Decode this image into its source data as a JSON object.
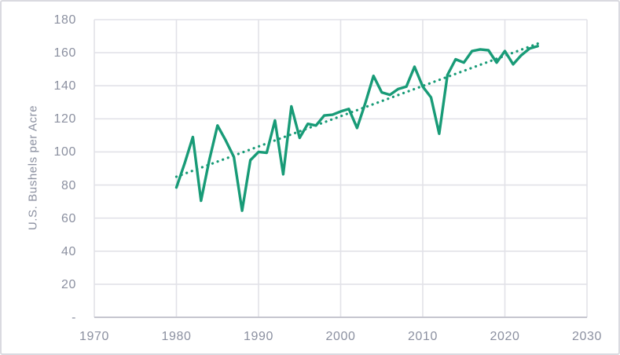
{
  "window": {
    "background": "#ffffff",
    "border_color": "#dadae0"
  },
  "chart_data": {
    "type": "line",
    "title": "",
    "xlabel": "",
    "ylabel": "U.S. Bushels per Acre",
    "xlim": [
      1970,
      2030
    ],
    "ylim": [
      0,
      180
    ],
    "grid": true,
    "legend": false,
    "colors": {
      "series_line": "#189b77",
      "trend_line": "#189b77",
      "gridline": "#e2e2e8",
      "axis_line": "#c6c6cf",
      "tick_text": "#8b90a0"
    },
    "x_ticks": {
      "values": [
        1970,
        1980,
        1990,
        2000,
        2010,
        2020,
        2030
      ],
      "labels": [
        "1970",
        "1980",
        "1990",
        "2000",
        "2010",
        "2020",
        "2030"
      ]
    },
    "y_ticks": {
      "values": [
        180,
        160,
        140,
        120,
        100,
        80,
        60,
        40,
        20,
        0
      ],
      "labels": [
        "180",
        "160",
        "140",
        "120",
        "100",
        "80",
        "60",
        "40",
        "20",
        "-"
      ]
    },
    "series": [
      {
        "style": "solid",
        "x": [
          1980,
          1981,
          1982,
          1983,
          1984,
          1985,
          1986,
          1987,
          1988,
          1989,
          1990,
          1991,
          1992,
          1993,
          1994,
          1995,
          1996,
          1997,
          1998,
          1999,
          2000,
          2001,
          2002,
          2003,
          2004,
          2005,
          2006,
          2007,
          2008,
          2009,
          2010,
          2011,
          2012,
          2013,
          2014,
          2015,
          2016,
          2017,
          2018,
          2019,
          2020,
          2021,
          2022,
          2023,
          2024
        ],
        "values": [
          78.5,
          93,
          109,
          70.5,
          95,
          116,
          107,
          97,
          64.5,
          95,
          100,
          99.5,
          119,
          86.5,
          127.5,
          108.5,
          117,
          116,
          122,
          122.5,
          124.5,
          126,
          114.5,
          129.5,
          146,
          136,
          134.5,
          138,
          139.5,
          151.5,
          139.5,
          133,
          111,
          146.5,
          156,
          154,
          161,
          162,
          161.5,
          154,
          161,
          153,
          158.5,
          162.5,
          164
        ]
      }
    ],
    "trendline": {
      "style": "dotted",
      "x": [
        1980,
        2024
      ],
      "values": [
        85,
        165.5
      ]
    }
  }
}
